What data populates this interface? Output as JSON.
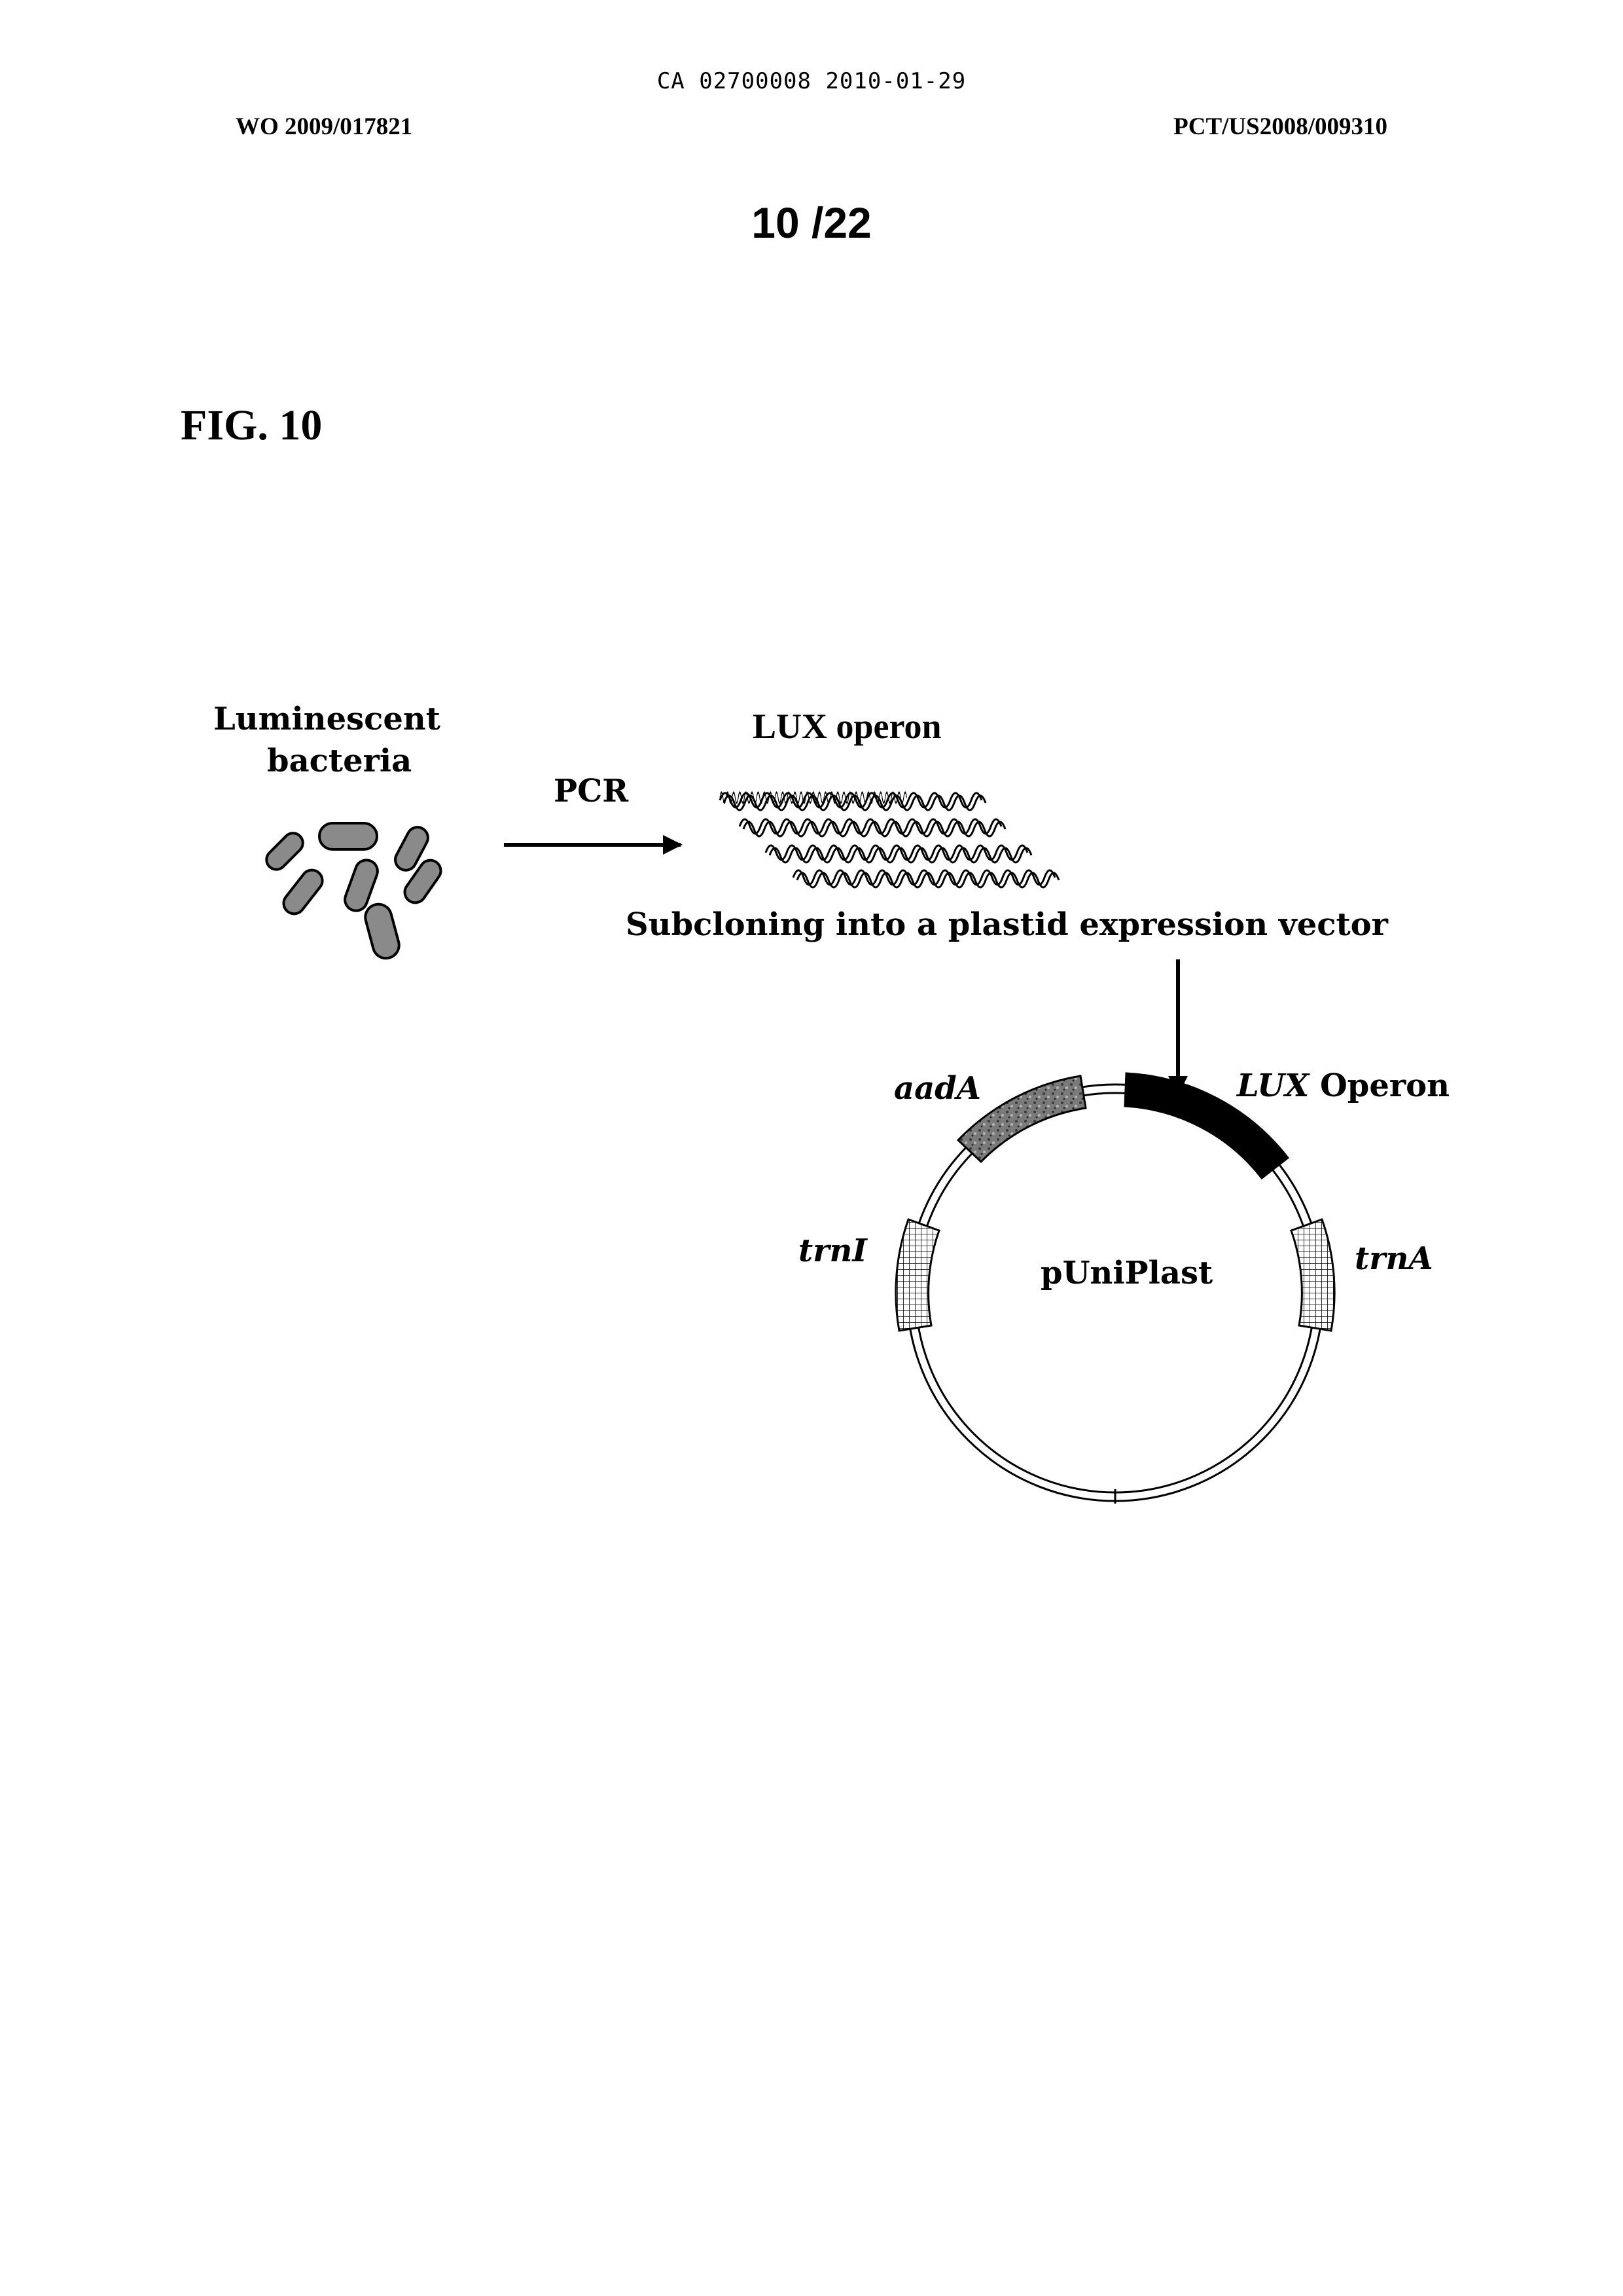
{
  "header": {
    "ca_line": "CA 02700008 2010-01-29",
    "wo_number": "WO 2009/017821",
    "pct_number": "PCT/US2008/009310",
    "sheet": "10 /22"
  },
  "figure": {
    "label": "FIG. 10",
    "source_line1": "Luminescent",
    "source_line2": "bacteria",
    "arrow_label": "PCR",
    "product_label": "LUX operon",
    "step_label": "Subcloning into a plastid expression vector",
    "plasmid": {
      "name": "pUniPlast",
      "segments": {
        "lux_italic": "LUX",
        "lux_rest": " Operon",
        "aada": "aadA",
        "trni": "trnI",
        "trna": "trnA"
      }
    }
  },
  "colors": {
    "ink": "#000000",
    "paper": "#ffffff",
    "bacteria_fill": "#8a8a8a",
    "aada_fill": "#777777"
  },
  "icons": [
    "bacteria-icon",
    "dna-strand-icon",
    "plasmid-map"
  ]
}
